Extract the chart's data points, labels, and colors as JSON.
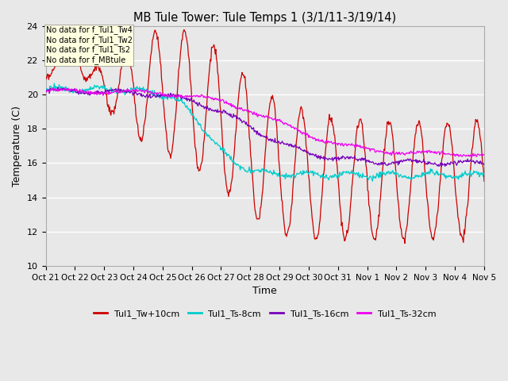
{
  "title": "MB Tule Tower: Tule Temps 1 (3/1/11-3/19/14)",
  "xlabel": "Time",
  "ylabel": "Temperature (C)",
  "ylim": [
    10,
    24
  ],
  "yticks": [
    10,
    12,
    14,
    16,
    18,
    20,
    22,
    24
  ],
  "xtick_labels": [
    "Oct 21",
    "Oct 22",
    "Oct 23",
    "Oct 24",
    "Oct 25",
    "Oct 26",
    "Oct 27",
    "Oct 28",
    "Oct 29",
    "Oct 30",
    "Oct 31",
    "Nov 1",
    "Nov 2",
    "Nov 3",
    "Nov 4",
    "Nov 5"
  ],
  "colors": {
    "Tul1_Tw+10cm": "#cc0000",
    "Tul1_Ts-8cm": "#00cccc",
    "Tul1_Ts-16cm": "#7700bb",
    "Tul1_Ts-32cm": "#ee00ee"
  },
  "no_data_lines": [
    "No data for f_Tul1_Tw4",
    "No data for f_Tul1_Tw2",
    "No data for f_Tul1_Ts2",
    "No data for f_MBtule"
  ],
  "background_color": "#e8e8e8",
  "plot_bg_color": "#e8e8e8",
  "grid_color": "#ffffff",
  "figsize": [
    6.4,
    4.8
  ],
  "dpi": 100
}
